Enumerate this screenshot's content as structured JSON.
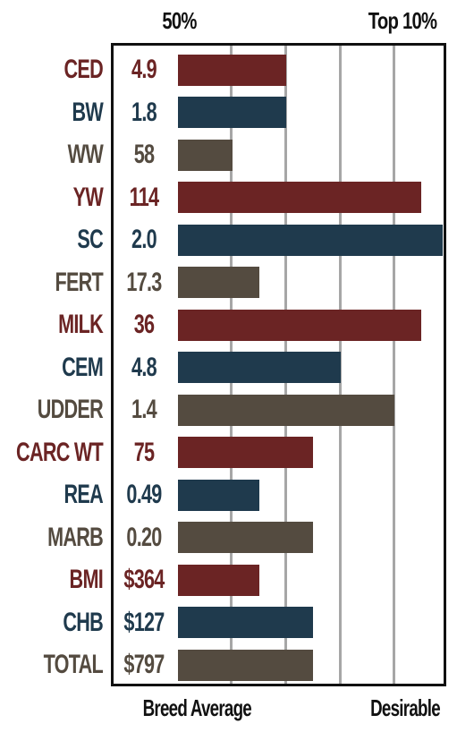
{
  "chart_data": {
    "type": "bar",
    "orientation": "horizontal",
    "header": {
      "left": "50%",
      "right": "Top 10%"
    },
    "footer": {
      "left": "Breed Average",
      "right": "Desirable"
    },
    "grid": true,
    "categories": [
      "CED",
      "BW",
      "WW",
      "YW",
      "SC",
      "FERT",
      "MILK",
      "CEM",
      "UDDER",
      "CARC WT",
      "REA",
      "MARB",
      "BMI",
      "CHB",
      "TOTAL"
    ],
    "value_labels": [
      "4.9",
      "1.8",
      "58",
      "114",
      "2.0",
      "17.3",
      "36",
      "4.8",
      "1.4",
      "75",
      "0.49",
      "0.20",
      "$364",
      "$127",
      "$797"
    ],
    "bar_levels": [
      2.0,
      2.0,
      1.0,
      4.5,
      4.9,
      1.5,
      4.5,
      3.0,
      4.0,
      2.5,
      1.5,
      2.5,
      1.5,
      2.5,
      2.5
    ],
    "scale": [
      0,
      5
    ],
    "colors": [
      "#6b2424",
      "#1f3a4d",
      "#544b40",
      "#6b2424",
      "#1f3a4d",
      "#544b40",
      "#6b2424",
      "#1f3a4d",
      "#544b40",
      "#6b2424",
      "#1f3a4d",
      "#544b40",
      "#6b2424",
      "#1f3a4d",
      "#544b40"
    ]
  }
}
